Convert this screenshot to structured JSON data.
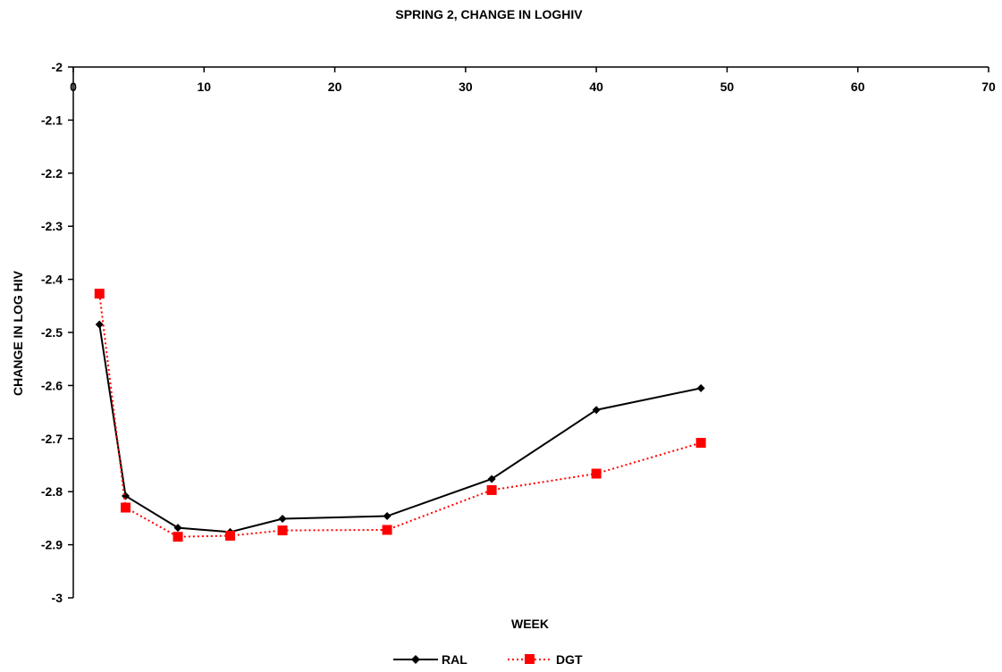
{
  "chart_data": {
    "type": "line",
    "title": "SPRING 2, CHANGE IN LOGHIV",
    "xlabel": "WEEK",
    "ylabel": "CHANGE IN LOG HIV",
    "xlim": [
      0,
      70
    ],
    "ylim": [
      -3,
      -2
    ],
    "x_ticks": [
      0,
      10,
      20,
      30,
      40,
      50,
      60,
      70
    ],
    "y_ticks": [
      -2,
      -2.1,
      -2.2,
      -2.3,
      -2.4,
      -2.5,
      -2.6,
      -2.7,
      -2.8,
      -2.9,
      -3
    ],
    "x_tick_labels": [
      "0",
      "10",
      "20",
      "30",
      "40",
      "50",
      "60",
      "70"
    ],
    "y_tick_labels": [
      "-2",
      "-2.1",
      "-2.2",
      "-2.3",
      "-2.4",
      "-2.5",
      "-2.6",
      "-2.7",
      "-2.8",
      "-2.9",
      "-3"
    ],
    "grid": false,
    "legend_position": "bottom",
    "x_axis_position": "top",
    "series": [
      {
        "name": "RAL",
        "color": "#000000",
        "line_style": "solid",
        "marker": "diamond",
        "x": [
          2,
          4,
          8,
          12,
          16,
          24,
          32,
          40,
          48
        ],
        "y": [
          -2.485,
          -2.808,
          -2.868,
          -2.876,
          -2.851,
          -2.846,
          -2.776,
          -2.646,
          -2.605
        ]
      },
      {
        "name": "DGT",
        "color": "#ff0000",
        "line_style": "dotted",
        "marker": "square",
        "x": [
          2,
          4,
          8,
          12,
          16,
          24,
          32,
          40,
          48
        ],
        "y": [
          -2.427,
          -2.83,
          -2.885,
          -2.883,
          -2.873,
          -2.872,
          -2.797,
          -2.766,
          -2.708
        ]
      }
    ]
  }
}
